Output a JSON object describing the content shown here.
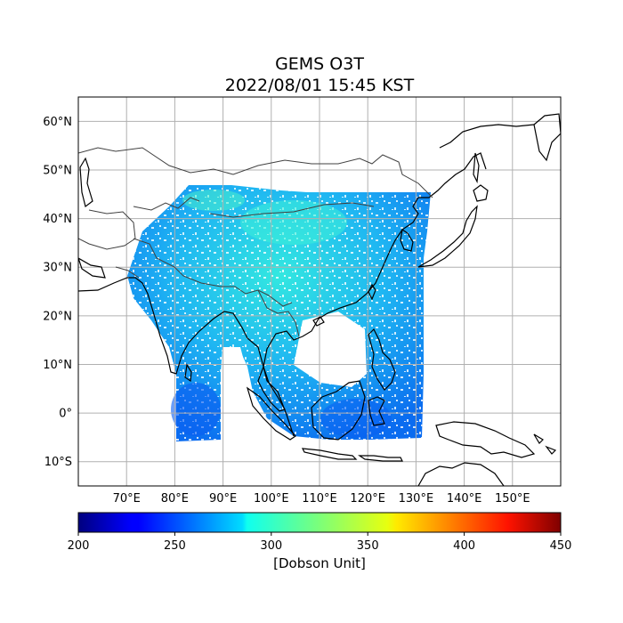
{
  "title": {
    "line1": "GEMS O3T",
    "line2": "2022/08/01 15:45 KST"
  },
  "map": {
    "lon_range": [
      60,
      160
    ],
    "lat_range": [
      -15,
      65
    ],
    "lat_ticks": [
      {
        "value": 60,
        "label": "60°N"
      },
      {
        "value": 50,
        "label": "50°N"
      },
      {
        "value": 40,
        "label": "40°N"
      },
      {
        "value": 30,
        "label": "30°N"
      },
      {
        "value": 20,
        "label": "20°N"
      },
      {
        "value": 10,
        "label": "10°N"
      },
      {
        "value": 0,
        "label": "0°"
      },
      {
        "value": -10,
        "label": "10°S"
      }
    ],
    "lon_ticks": [
      {
        "value": 70,
        "label": "70°E"
      },
      {
        "value": 80,
        "label": "80°E"
      },
      {
        "value": 90,
        "label": "90°E"
      },
      {
        "value": 100,
        "label": "100°E"
      },
      {
        "value": 110,
        "label": "110°E"
      },
      {
        "value": 120,
        "label": "120°E"
      },
      {
        "value": 130,
        "label": "130°E"
      },
      {
        "value": 140,
        "label": "140°E"
      },
      {
        "value": 150,
        "label": "150°E"
      }
    ],
    "grid": true,
    "colors": {
      "coastline": "#000000",
      "borders": "#404040",
      "grid": "#b0b0b0"
    }
  },
  "colorbar": {
    "min": 200,
    "max": 450,
    "ticks": [
      "200",
      "250",
      "300",
      "350",
      "400",
      "450"
    ],
    "unit_label": "[Dobson Unit]",
    "colormap": "jet"
  }
}
